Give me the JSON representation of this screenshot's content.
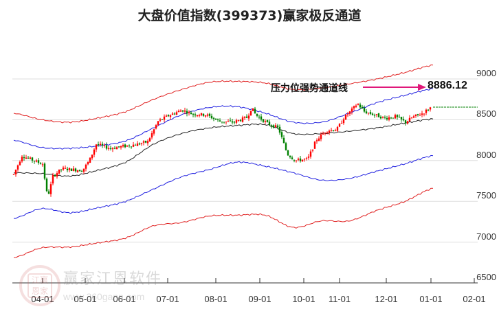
{
  "title": "大盘价值指数(399373)赢家极反通道",
  "annotation": {
    "label": "压力位强势通道线",
    "value": "8886.12",
    "arrow_color": "#e0187a"
  },
  "watermark": {
    "text": "赢家江恩软件",
    "url": "www.360gann.com",
    "logo_chars": "江赢恩家"
  },
  "colors": {
    "outer_band": "#e02020",
    "inner_band": "#2020e0",
    "mid_line": "#222222",
    "candle_up": "#ff0000",
    "candle_down": "#008000",
    "last_price_line": "#008000",
    "grid": "#dddddd"
  },
  "chart_data": {
    "type": "candlestick_with_channels",
    "title": "大盘价值指数(399373)赢家极反通道",
    "xlabel": "",
    "ylabel": "",
    "ylim": [
      6500,
      9000
    ],
    "yticks": [
      "9000",
      "8500",
      "8000",
      "7500",
      "7000",
      "6500"
    ],
    "xticks": [
      "04-01",
      "05-01",
      "06-01",
      "07-01",
      "08-01",
      "09-01",
      "10-01",
      "11-01",
      "12-01",
      "01-01",
      "02-01"
    ],
    "grid": true,
    "annotations": [
      {
        "text": "压力位强势通道线",
        "value": 8886.12
      }
    ],
    "last_close_approx": 8660,
    "series": [
      {
        "name": "outer_upper",
        "color": "#e02020",
        "values_approx": [
          8580,
          8500,
          8470,
          8520,
          8600,
          8750,
          8870,
          8960,
          8970,
          8950,
          8870,
          8890,
          8940,
          9000,
          9080,
          9170
        ]
      },
      {
        "name": "inner_upper",
        "color": "#2020e0",
        "values_approx": [
          8250,
          8160,
          8150,
          8180,
          8240,
          8400,
          8560,
          8650,
          8660,
          8580,
          8470,
          8470,
          8580,
          8710,
          8800,
          8880
        ]
      },
      {
        "name": "mid",
        "color": "#222222",
        "values_approx": [
          7850,
          7840,
          7810,
          7880,
          7980,
          8200,
          8330,
          8400,
          8430,
          8440,
          8330,
          8330,
          8360,
          8400,
          8460,
          8510
        ]
      },
      {
        "name": "inner_lower",
        "color": "#2020e0",
        "values_approx": [
          7290,
          7410,
          7360,
          7420,
          7500,
          7650,
          7800,
          7890,
          7980,
          7930,
          7850,
          7760,
          7780,
          7870,
          7960,
          8060
        ]
      },
      {
        "name": "outer_lower",
        "color": "#e02020",
        "values_approx": [
          6810,
          6930,
          6940,
          6990,
          7050,
          7200,
          7240,
          7320,
          7330,
          7330,
          7180,
          7260,
          7260,
          7390,
          7500,
          7660
        ]
      }
    ]
  }
}
